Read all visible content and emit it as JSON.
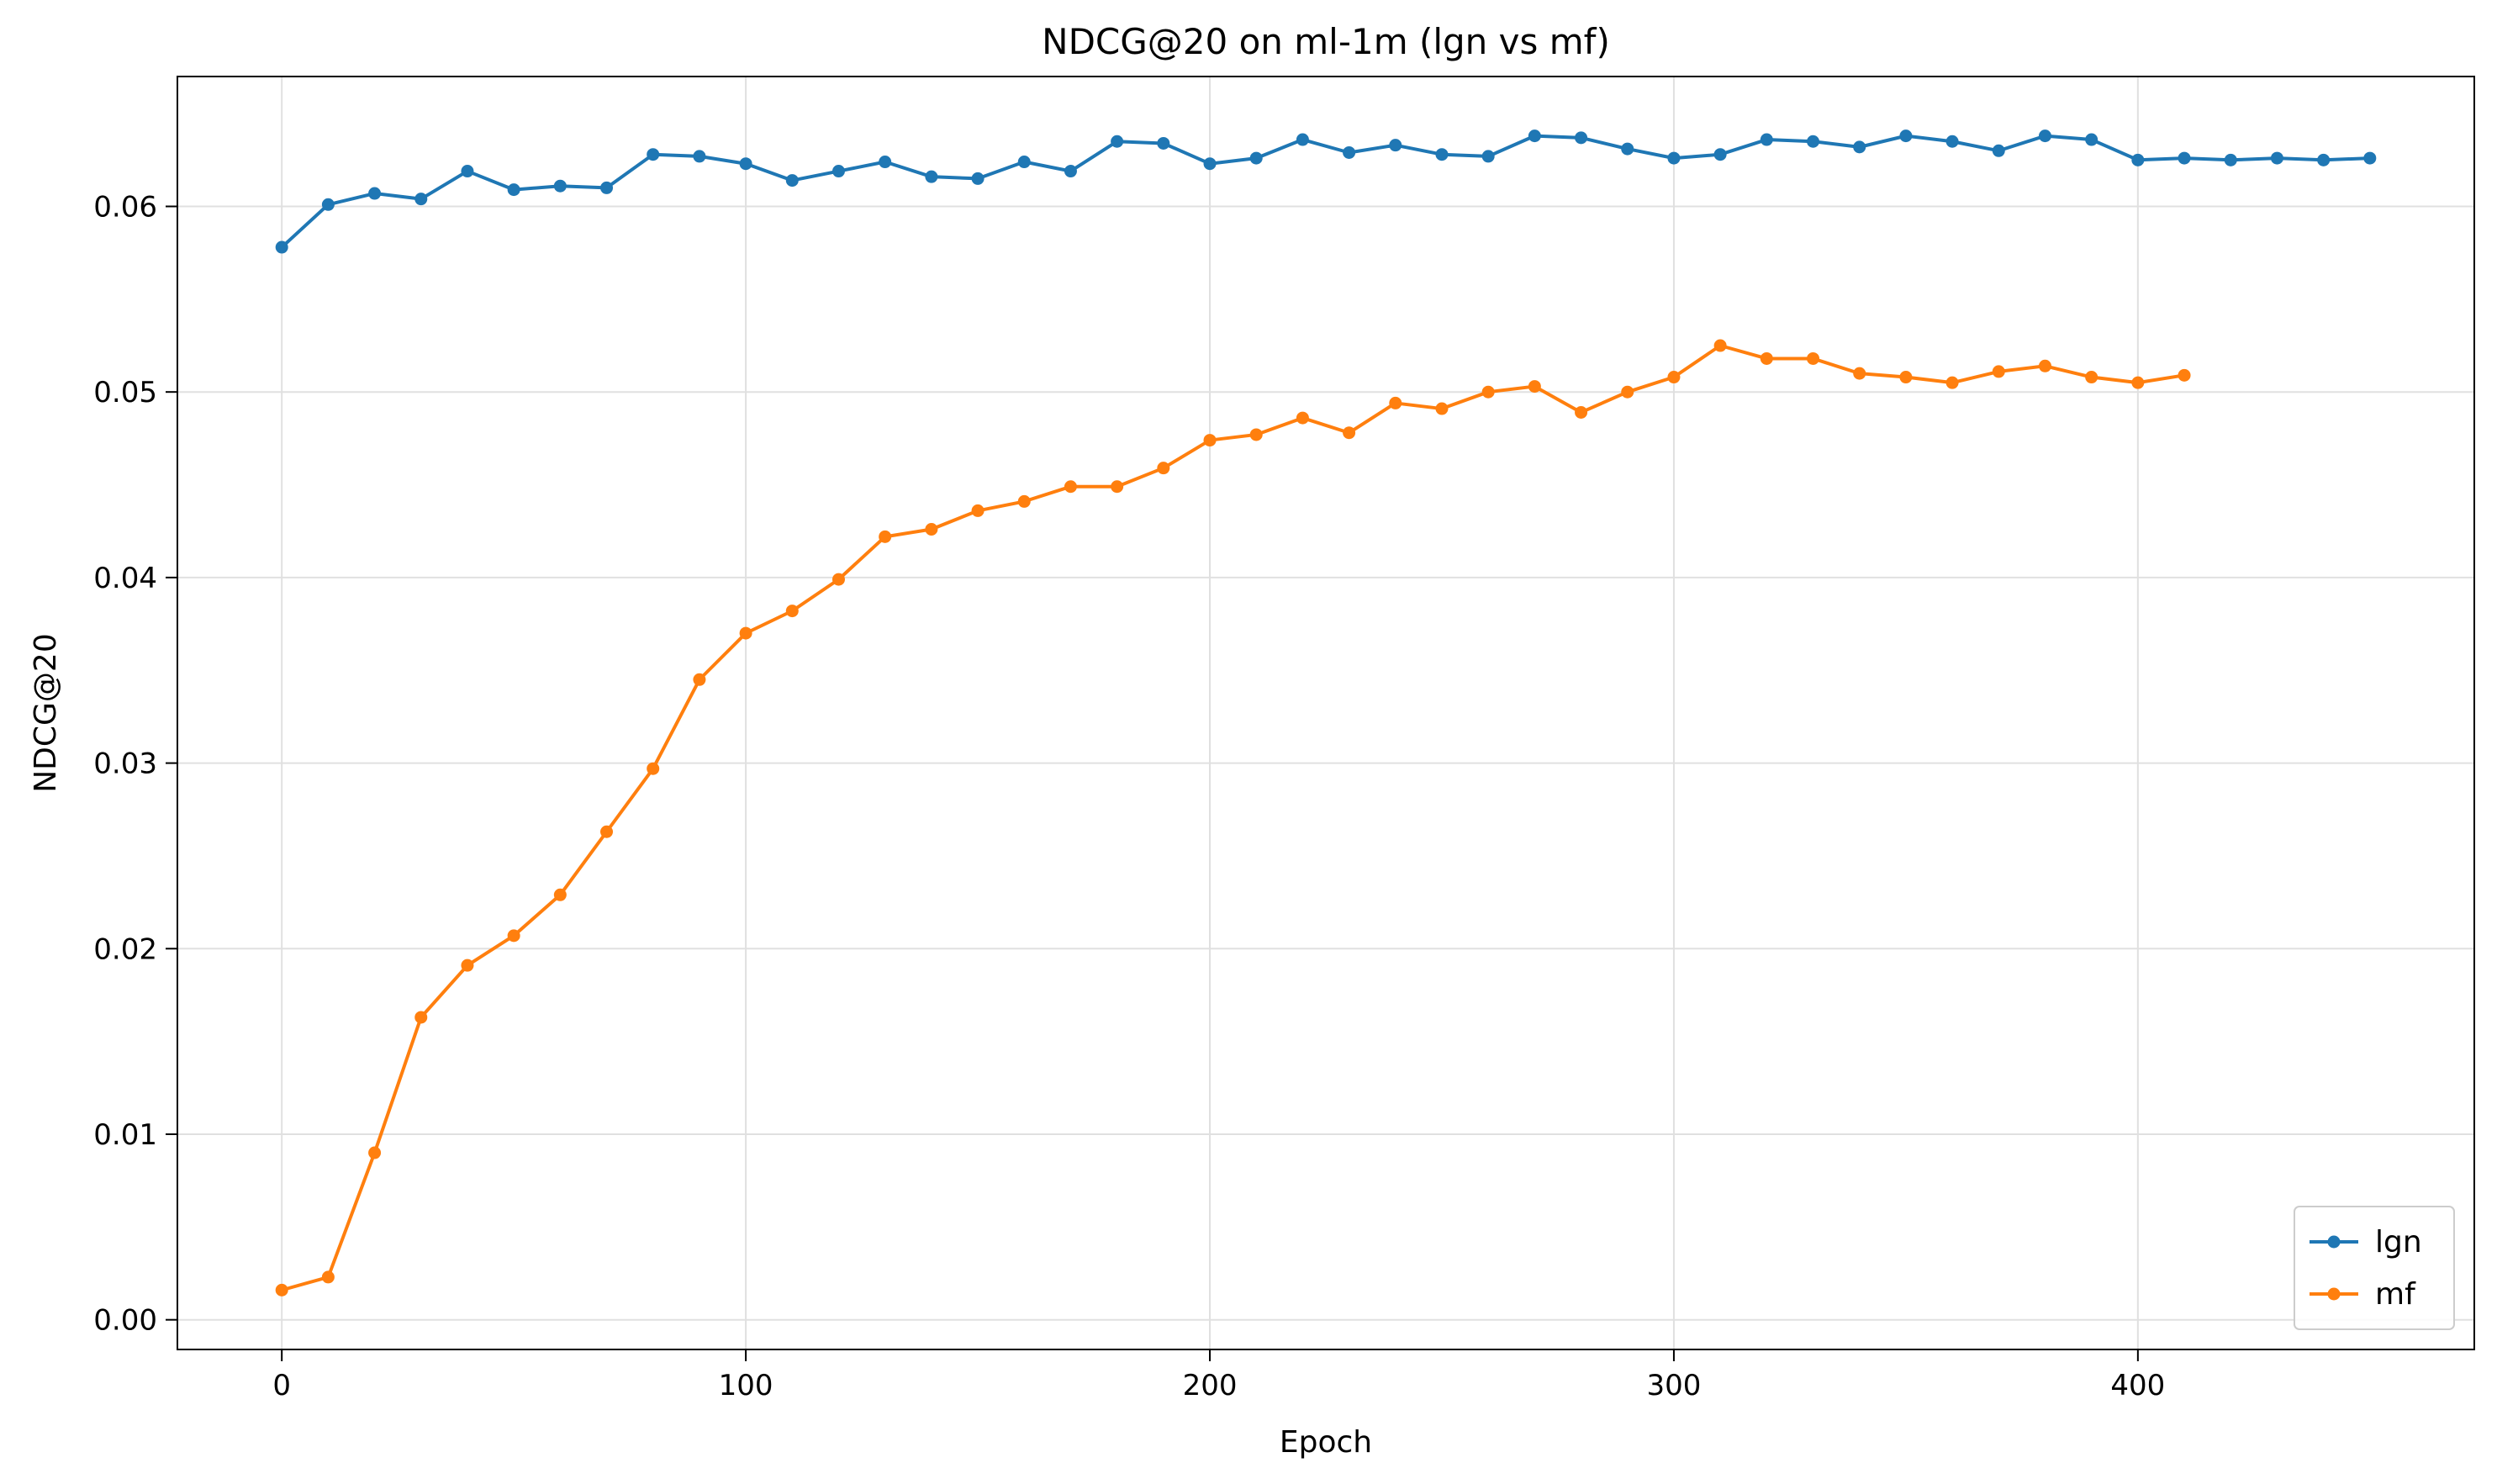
{
  "chart_data": {
    "type": "line",
    "title": "NDCG@20 on ml-1m (lgn vs mf)",
    "xlabel": "Epoch",
    "ylabel": "NDCG@20",
    "xlim": [
      -22.5,
      472.5
    ],
    "ylim": [
      -0.0016,
      0.067
    ],
    "x_ticks": [
      0,
      100,
      200,
      300,
      400
    ],
    "x_tick_labels": [
      "0",
      "100",
      "200",
      "300",
      "400"
    ],
    "y_ticks": [
      0.0,
      0.01,
      0.02,
      0.03,
      0.04,
      0.05,
      0.06
    ],
    "y_tick_labels": [
      "0.00",
      "0.01",
      "0.02",
      "0.03",
      "0.04",
      "0.05",
      "0.06"
    ],
    "grid": true,
    "legend_position": "lower-right",
    "series": [
      {
        "name": "lgn",
        "color": "#1f77b4",
        "marker": "circle",
        "x": [
          0,
          10,
          20,
          30,
          40,
          50,
          60,
          70,
          80,
          90,
          100,
          110,
          120,
          130,
          140,
          150,
          160,
          170,
          180,
          190,
          200,
          210,
          220,
          230,
          240,
          250,
          260,
          270,
          280,
          290,
          300,
          310,
          320,
          330,
          340,
          350,
          360,
          370,
          380,
          390,
          400,
          410,
          420,
          430,
          440,
          450
        ],
        "y": [
          0.0578,
          0.0601,
          0.0607,
          0.0604,
          0.0619,
          0.0609,
          0.0611,
          0.061,
          0.0628,
          0.0627,
          0.0623,
          0.0614,
          0.0619,
          0.0624,
          0.0616,
          0.0615,
          0.0624,
          0.0619,
          0.0635,
          0.0634,
          0.0623,
          0.0626,
          0.0636,
          0.0629,
          0.0633,
          0.0628,
          0.0627,
          0.0638,
          0.0637,
          0.0631,
          0.0626,
          0.0628,
          0.0636,
          0.0635,
          0.0632,
          0.0638,
          0.0635,
          0.063,
          0.0638,
          0.0636,
          0.0625,
          0.0626,
          0.0625,
          0.0626,
          0.0625,
          0.0626
        ]
      },
      {
        "name": "mf",
        "color": "#ff7f0e",
        "marker": "circle",
        "x": [
          0,
          10,
          20,
          30,
          40,
          50,
          60,
          70,
          80,
          90,
          100,
          110,
          120,
          130,
          140,
          150,
          160,
          170,
          180,
          190,
          200,
          210,
          220,
          230,
          240,
          250,
          260,
          270,
          280,
          290,
          300,
          310,
          320,
          330,
          340,
          350,
          360,
          370,
          380,
          390,
          400,
          410
        ],
        "y": [
          0.0016,
          0.0023,
          0.009,
          0.0163,
          0.0191,
          0.0207,
          0.0229,
          0.0263,
          0.0297,
          0.0345,
          0.037,
          0.0382,
          0.0399,
          0.0422,
          0.0426,
          0.0436,
          0.0441,
          0.0449,
          0.0449,
          0.0459,
          0.0474,
          0.0477,
          0.0486,
          0.0478,
          0.0494,
          0.0491,
          0.05,
          0.0503,
          0.0489,
          0.05,
          0.0508,
          0.0525,
          0.0518,
          0.0518,
          0.051,
          0.0508,
          0.0505,
          0.0511,
          0.0514,
          0.0508,
          0.0505,
          0.0509
        ]
      }
    ]
  }
}
